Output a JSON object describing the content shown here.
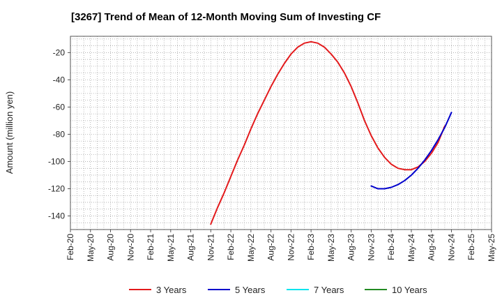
{
  "chart_data": {
    "type": "line",
    "title": "[3267]  Trend of Mean of 12-Month Moving Sum of Investing CF",
    "xlabel": "",
    "ylabel": "Amount (million yen)",
    "ylim": [
      -150,
      -8
    ],
    "yticks": [
      -20,
      -40,
      -60,
      -80,
      -100,
      -120,
      -140
    ],
    "x_ticks": [
      "Feb-20",
      "May-20",
      "Aug-20",
      "Nov-20",
      "Feb-21",
      "May-21",
      "Aug-21",
      "Nov-21",
      "Feb-22",
      "May-22",
      "Aug-22",
      "Nov-22",
      "Feb-23",
      "May-23",
      "Aug-23",
      "Nov-23",
      "Feb-24",
      "May-24",
      "Aug-24",
      "Nov-24",
      "Feb-25",
      "May-25"
    ],
    "grid": true,
    "legend_position": "bottom",
    "series": [
      {
        "name": "3 Years",
        "color": "#e31a1c",
        "points": [
          [
            "Nov-21",
            -146
          ],
          [
            "Dec-21",
            -134
          ],
          [
            "Jan-22",
            -123
          ],
          [
            "Feb-22",
            -111
          ],
          [
            "Mar-22",
            -99
          ],
          [
            "Apr-22",
            -88
          ],
          [
            "May-22",
            -76
          ],
          [
            "Jun-22",
            -65
          ],
          [
            "Jul-22",
            -55
          ],
          [
            "Aug-22",
            -45
          ],
          [
            "Sep-22",
            -36
          ],
          [
            "Oct-22",
            -28
          ],
          [
            "Nov-22",
            -21
          ],
          [
            "Dec-22",
            -16
          ],
          [
            "Jan-23",
            -13
          ],
          [
            "Feb-23",
            -12
          ],
          [
            "Mar-23",
            -13
          ],
          [
            "Apr-23",
            -16
          ],
          [
            "May-23",
            -21
          ],
          [
            "Jun-23",
            -27
          ],
          [
            "Jul-23",
            -35
          ],
          [
            "Aug-23",
            -45
          ],
          [
            "Sep-23",
            -57
          ],
          [
            "Oct-23",
            -70
          ],
          [
            "Nov-23",
            -81
          ],
          [
            "Dec-23",
            -90
          ],
          [
            "Jan-24",
            -97
          ],
          [
            "Feb-24",
            -102
          ],
          [
            "Mar-24",
            -105
          ],
          [
            "Apr-24",
            -106
          ],
          [
            "May-24",
            -106
          ],
          [
            "Jun-24",
            -104
          ],
          [
            "Jul-24",
            -100
          ],
          [
            "Aug-24",
            -94
          ],
          [
            "Sep-24",
            -86
          ],
          [
            "Oct-24",
            -74
          ]
        ]
      },
      {
        "name": "5 Years",
        "color": "#0000cc",
        "points": [
          [
            "Nov-23",
            -118
          ],
          [
            "Dec-23",
            -120
          ],
          [
            "Jan-24",
            -120
          ],
          [
            "Feb-24",
            -119
          ],
          [
            "Mar-24",
            -117
          ],
          [
            "Apr-24",
            -114
          ],
          [
            "May-24",
            -110
          ],
          [
            "Jun-24",
            -105
          ],
          [
            "Jul-24",
            -99
          ],
          [
            "Aug-24",
            -92
          ],
          [
            "Sep-24",
            -84
          ],
          [
            "Oct-24",
            -75
          ],
          [
            "Nov-24",
            -64
          ]
        ]
      },
      {
        "name": "7 Years",
        "color": "#00e5ee",
        "points": []
      },
      {
        "name": "10 Years",
        "color": "#228b22",
        "points": []
      }
    ]
  }
}
